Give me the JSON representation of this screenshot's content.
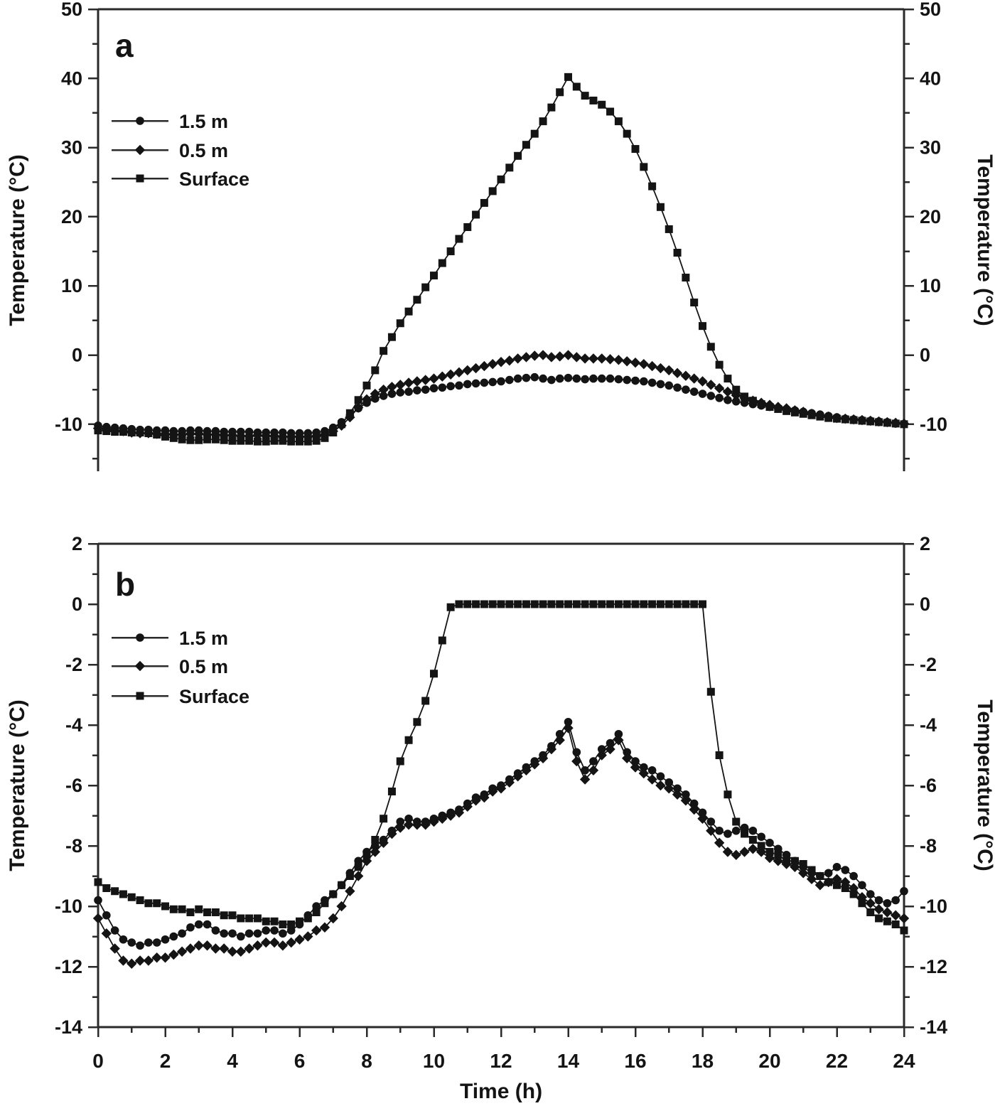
{
  "figure": {
    "background": "#ffffff",
    "ink": "#141414",
    "axis_color": "#2a2a2a"
  },
  "x_hours": [
    0,
    0.25,
    0.5,
    0.75,
    1,
    1.25,
    1.5,
    1.75,
    2,
    2.25,
    2.5,
    2.75,
    3,
    3.25,
    3.5,
    3.75,
    4,
    4.25,
    4.5,
    4.75,
    5,
    5.25,
    5.5,
    5.75,
    6,
    6.25,
    6.5,
    6.75,
    7,
    7.25,
    7.5,
    7.75,
    8,
    8.25,
    8.5,
    8.75,
    9,
    9.25,
    9.5,
    9.75,
    10,
    10.25,
    10.5,
    10.75,
    11,
    11.25,
    11.5,
    11.75,
    12,
    12.25,
    12.5,
    12.75,
    13,
    13.25,
    13.5,
    13.75,
    14,
    14.25,
    14.5,
    14.75,
    15,
    15.25,
    15.5,
    15.75,
    16,
    16.25,
    16.5,
    16.75,
    17,
    17.25,
    17.5,
    17.75,
    18,
    18.25,
    18.5,
    18.75,
    19,
    19.25,
    19.5,
    19.75,
    20,
    20.25,
    20.5,
    20.75,
    21,
    21.25,
    21.5,
    21.75,
    22,
    22.25,
    22.5,
    22.75,
    23,
    23.25,
    23.5,
    23.75,
    24
  ],
  "chart_data": [
    {
      "panel": "a",
      "panel_letter": "a",
      "type": "line",
      "xlabel": "",
      "ylabel_left": "Temperature (°C)",
      "ylabel_right": "Temperature (°C)",
      "xlim": [
        0,
        24
      ],
      "ylim": [
        -16.8,
        50
      ],
      "grid": false,
      "legend_position": "upper-left",
      "x_major_ticks": [],
      "y_major_ticks": [
        50,
        40,
        30,
        20,
        10,
        0,
        -10
      ],
      "y_minor_ticks": [
        45,
        35,
        25,
        15,
        5,
        -5,
        -15
      ],
      "legend_labels": [
        "1.5 m",
        "0.5 m",
        "Surface"
      ],
      "series": [
        {
          "name": "1.5 m",
          "marker": "circle",
          "values": [
            -10.2,
            -10.4,
            -10.5,
            -10.6,
            -10.7,
            -10.8,
            -10.8,
            -10.9,
            -10.9,
            -11.0,
            -11.0,
            -10.9,
            -10.9,
            -11.0,
            -11.0,
            -11.1,
            -11.1,
            -11.1,
            -11.1,
            -11.2,
            -11.2,
            -11.2,
            -11.2,
            -11.3,
            -11.3,
            -11.3,
            -11.2,
            -11.0,
            -10.5,
            -9.7,
            -8.7,
            -7.7,
            -6.9,
            -6.3,
            -5.9,
            -5.6,
            -5.4,
            -5.3,
            -5.1,
            -5.0,
            -4.8,
            -4.7,
            -4.5,
            -4.4,
            -4.2,
            -4.1,
            -4.0,
            -3.9,
            -3.8,
            -3.6,
            -3.4,
            -3.3,
            -3.2,
            -3.4,
            -3.6,
            -3.4,
            -3.3,
            -3.4,
            -3.5,
            -3.4,
            -3.4,
            -3.4,
            -3.5,
            -3.6,
            -3.7,
            -3.8,
            -4.0,
            -4.2,
            -4.4,
            -4.7,
            -5.0,
            -5.3,
            -5.6,
            -5.9,
            -6.2,
            -6.5,
            -6.7,
            -6.9,
            -7.1,
            -7.3,
            -7.5,
            -7.7,
            -7.8,
            -8.0,
            -8.2,
            -8.4,
            -8.6,
            -8.8,
            -9.0,
            -9.2,
            -9.3,
            -9.4,
            -9.5,
            -9.6,
            -9.7,
            -9.9,
            -10.0
          ]
        },
        {
          "name": "0.5 m",
          "marker": "diamond",
          "values": [
            -10.6,
            -10.7,
            -10.9,
            -11.0,
            -11.2,
            -11.3,
            -11.3,
            -11.4,
            -11.4,
            -11.5,
            -11.5,
            -11.4,
            -11.4,
            -11.5,
            -11.5,
            -11.6,
            -11.6,
            -11.7,
            -11.7,
            -11.6,
            -11.7,
            -11.7,
            -11.8,
            -11.8,
            -11.8,
            -11.8,
            -11.7,
            -11.5,
            -11.0,
            -10.2,
            -9.0,
            -7.6,
            -6.4,
            -5.6,
            -5.0,
            -4.6,
            -4.3,
            -4.0,
            -3.8,
            -3.6,
            -3.4,
            -3.1,
            -2.8,
            -2.5,
            -2.2,
            -1.9,
            -1.6,
            -1.3,
            -1.0,
            -0.8,
            -0.5,
            -0.3,
            -0.1,
            0.0,
            -0.3,
            -0.2,
            0.0,
            -0.3,
            -0.5,
            -0.5,
            -0.5,
            -0.6,
            -0.7,
            -0.9,
            -1.1,
            -1.3,
            -1.6,
            -1.9,
            -2.2,
            -2.6,
            -3.0,
            -3.4,
            -3.8,
            -4.3,
            -4.8,
            -5.3,
            -5.8,
            -6.2,
            -6.6,
            -6.9,
            -7.2,
            -7.5,
            -7.7,
            -8.0,
            -8.2,
            -8.5,
            -8.7,
            -8.9,
            -9.1,
            -9.2,
            -9.3,
            -9.4,
            -9.5,
            -9.6,
            -9.7,
            -9.8,
            -9.9
          ]
        },
        {
          "name": "Surface",
          "marker": "square",
          "values": [
            -10.9,
            -11.0,
            -11.1,
            -11.1,
            -11.2,
            -11.2,
            -11.3,
            -11.5,
            -11.8,
            -12.0,
            -12.2,
            -12.3,
            -12.3,
            -12.2,
            -12.2,
            -12.3,
            -12.4,
            -12.4,
            -12.4,
            -12.5,
            -12.5,
            -12.4,
            -12.4,
            -12.5,
            -12.5,
            -12.5,
            -12.4,
            -12.0,
            -11.2,
            -10.0,
            -8.4,
            -6.5,
            -4.4,
            -2.2,
            0.6,
            2.6,
            4.6,
            6.3,
            8.0,
            9.8,
            11.5,
            13.3,
            15.0,
            16.8,
            18.5,
            20.3,
            22.0,
            23.7,
            25.4,
            27.1,
            28.8,
            30.4,
            32.0,
            33.8,
            35.8,
            38.0,
            40.2,
            38.8,
            37.5,
            36.8,
            36.2,
            35.2,
            33.8,
            32.0,
            29.8,
            27.2,
            24.4,
            21.4,
            18.2,
            14.8,
            11.2,
            7.6,
            4.2,
            1.2,
            -1.4,
            -3.4,
            -5.0,
            -6.0,
            -6.6,
            -7.1,
            -7.5,
            -7.8,
            -8.1,
            -8.3,
            -8.5,
            -8.7,
            -8.9,
            -9.1,
            -9.2,
            -9.3,
            -9.4,
            -9.5,
            -9.6,
            -9.7,
            -9.8,
            -9.9,
            -10.0
          ]
        }
      ]
    },
    {
      "panel": "b",
      "panel_letter": "b",
      "type": "line",
      "xlabel": "Time (h)",
      "ylabel_left": "Temperature (°C)",
      "ylabel_right": "Temperature (°C)",
      "xlim": [
        0,
        24
      ],
      "ylim": [
        -14,
        2
      ],
      "grid": false,
      "legend_position": "upper-left",
      "x_major_ticks": [
        0,
        2,
        4,
        6,
        8,
        10,
        12,
        14,
        16,
        18,
        20,
        22,
        24
      ],
      "x_minor_ticks": [
        1,
        3,
        5,
        7,
        9,
        11,
        13,
        15,
        17,
        19,
        21,
        23
      ],
      "y_major_ticks": [
        2,
        0,
        -2,
        -4,
        -6,
        -8,
        -10,
        -12,
        -14
      ],
      "y_minor_ticks": [
        1,
        -1,
        -3,
        -5,
        -7,
        -9,
        -11,
        -13
      ],
      "legend_labels": [
        "1.5 m",
        "0.5 m",
        "Surface"
      ],
      "series": [
        {
          "name": "1.5 m",
          "marker": "circle",
          "values": [
            -9.8,
            -10.3,
            -10.8,
            -11.1,
            -11.2,
            -11.3,
            -11.2,
            -11.2,
            -11.1,
            -11.0,
            -10.9,
            -10.7,
            -10.6,
            -10.6,
            -10.8,
            -10.9,
            -10.9,
            -11.0,
            -10.9,
            -10.9,
            -10.8,
            -10.8,
            -10.9,
            -10.8,
            -10.6,
            -10.3,
            -10.0,
            -9.8,
            -9.6,
            -9.3,
            -8.9,
            -8.5,
            -8.2,
            -8.0,
            -7.8,
            -7.5,
            -7.2,
            -7.1,
            -7.2,
            -7.2,
            -7.1,
            -7.0,
            -6.9,
            -6.8,
            -6.6,
            -6.4,
            -6.3,
            -6.1,
            -6.0,
            -5.8,
            -5.6,
            -5.4,
            -5.2,
            -5.0,
            -4.7,
            -4.3,
            -3.9,
            -4.9,
            -5.5,
            -5.2,
            -4.8,
            -4.6,
            -4.3,
            -4.9,
            -5.2,
            -5.4,
            -5.5,
            -5.7,
            -5.9,
            -6.1,
            -6.3,
            -6.6,
            -6.9,
            -7.2,
            -7.5,
            -7.6,
            -7.5,
            -7.4,
            -7.5,
            -7.7,
            -7.9,
            -8.1,
            -8.3,
            -8.5,
            -8.7,
            -8.9,
            -9.0,
            -8.9,
            -8.7,
            -8.8,
            -9.0,
            -9.3,
            -9.6,
            -9.8,
            -9.9,
            -9.8,
            -9.5
          ]
        },
        {
          "name": "0.5 m",
          "marker": "diamond",
          "values": [
            -10.4,
            -10.9,
            -11.4,
            -11.8,
            -11.9,
            -11.8,
            -11.8,
            -11.7,
            -11.7,
            -11.6,
            -11.5,
            -11.4,
            -11.3,
            -11.3,
            -11.4,
            -11.4,
            -11.5,
            -11.5,
            -11.4,
            -11.3,
            -11.2,
            -11.2,
            -11.3,
            -11.2,
            -11.1,
            -11.0,
            -10.8,
            -10.7,
            -10.4,
            -10.0,
            -9.5,
            -9.0,
            -8.5,
            -8.2,
            -7.9,
            -7.6,
            -7.4,
            -7.3,
            -7.3,
            -7.3,
            -7.2,
            -7.1,
            -7.0,
            -6.9,
            -6.7,
            -6.5,
            -6.4,
            -6.2,
            -6.1,
            -5.9,
            -5.7,
            -5.5,
            -5.3,
            -5.1,
            -4.8,
            -4.5,
            -4.1,
            -5.2,
            -5.8,
            -5.5,
            -5.0,
            -4.8,
            -4.5,
            -5.1,
            -5.4,
            -5.6,
            -5.8,
            -6.0,
            -6.1,
            -6.3,
            -6.5,
            -6.8,
            -7.1,
            -7.5,
            -7.9,
            -8.2,
            -8.3,
            -8.2,
            -8.1,
            -8.2,
            -8.4,
            -8.5,
            -8.6,
            -8.7,
            -8.9,
            -9.1,
            -9.3,
            -9.2,
            -9.1,
            -9.2,
            -9.4,
            -9.7,
            -9.9,
            -10.1,
            -10.2,
            -10.3,
            -10.4
          ]
        },
        {
          "name": "Surface",
          "marker": "square",
          "values": [
            -9.2,
            -9.4,
            -9.5,
            -9.6,
            -9.7,
            -9.8,
            -9.9,
            -9.9,
            -10.0,
            -10.1,
            -10.1,
            -10.2,
            -10.1,
            -10.2,
            -10.2,
            -10.3,
            -10.3,
            -10.4,
            -10.4,
            -10.4,
            -10.5,
            -10.5,
            -10.6,
            -10.6,
            -10.5,
            -10.4,
            -10.2,
            -9.9,
            -9.6,
            -9.3,
            -9.0,
            -8.7,
            -8.3,
            -7.8,
            -7.1,
            -6.2,
            -5.2,
            -4.5,
            -3.9,
            -3.2,
            -2.3,
            -1.2,
            -0.1,
            0.0,
            0.0,
            0.0,
            0.0,
            0.0,
            0.0,
            0.0,
            0.0,
            0.0,
            0.0,
            0.0,
            0.0,
            0.0,
            0.0,
            0.0,
            0.0,
            0.0,
            0.0,
            0.0,
            0.0,
            0.0,
            0.0,
            0.0,
            0.0,
            0.0,
            0.0,
            0.0,
            0.0,
            0.0,
            0.0,
            -2.9,
            -5.0,
            -6.3,
            -7.2,
            -7.6,
            -7.8,
            -8.0,
            -8.2,
            -8.3,
            -8.5,
            -8.5,
            -8.6,
            -8.8,
            -9.0,
            -9.2,
            -9.3,
            -9.4,
            -9.6,
            -9.9,
            -10.2,
            -10.4,
            -10.5,
            -10.6,
            -10.8
          ]
        }
      ]
    }
  ]
}
